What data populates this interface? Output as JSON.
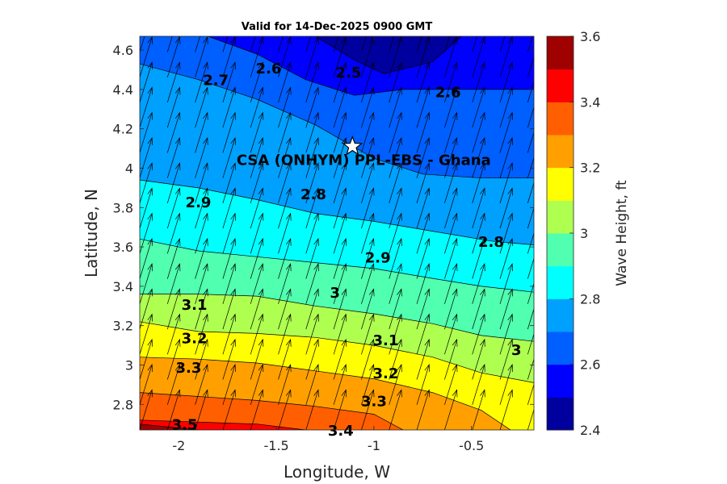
{
  "chart_data": {
    "type": "contour",
    "title": "Valid for 14-Dec-2025 0900 GMT",
    "xlabel": "Longitude, W",
    "ylabel": "Latitude, N",
    "xlim": [
      -2.2,
      -0.18
    ],
    "ylim": [
      2.67,
      4.67
    ],
    "xticks": [
      -2,
      -1.5,
      -1,
      -0.5
    ],
    "xtick_labels": [
      "-2",
      "-1.5",
      "-1",
      "-0.5"
    ],
    "yticks": [
      2.8,
      3.0,
      3.2,
      3.4,
      3.6,
      3.8,
      4.0,
      4.2,
      4.4,
      4.6
    ],
    "ytick_labels": [
      "2.8",
      "3",
      "3.2",
      "3.4",
      "3.6",
      "3.8",
      "4",
      "4.2",
      "4.4",
      "4.6"
    ],
    "colorbar": {
      "label": "Wave Height, ft",
      "range": [
        2.4,
        3.6
      ],
      "ticks": [
        2.4,
        2.6,
        2.8,
        3.0,
        3.2,
        3.4,
        3.6
      ],
      "tick_labels": [
        "2.4",
        "2.6",
        "2.8",
        "3",
        "3.2",
        "3.4",
        "3.6"
      ],
      "colors": [
        "#00009f",
        "#0000ff",
        "#005fff",
        "#00a0ff",
        "#00ffff",
        "#50ffaf",
        "#afff50",
        "#ffff00",
        "#ffa000",
        "#ff5f00",
        "#ff0000",
        "#9f0000"
      ]
    },
    "levels": [
      2.5,
      2.6,
      2.7,
      2.8,
      2.9,
      3.0,
      3.1,
      3.2,
      3.3,
      3.4,
      3.5
    ],
    "contour_lines": [
      {
        "level": 2.5,
        "points": [
          [
            -1.3,
            4.67
          ],
          [
            -1.1,
            4.55
          ],
          [
            -0.95,
            4.48
          ],
          [
            -0.7,
            4.54
          ],
          [
            -0.55,
            4.67
          ]
        ]
      },
      {
        "level": 2.6,
        "points": [
          [
            -1.85,
            4.67
          ],
          [
            -1.6,
            4.58
          ],
          [
            -1.35,
            4.45
          ],
          [
            -1.1,
            4.37
          ],
          [
            -0.85,
            4.4
          ],
          [
            -0.5,
            4.4
          ],
          [
            -0.18,
            4.4
          ]
        ]
      },
      {
        "level": 2.7,
        "points": [
          [
            -2.2,
            4.53
          ],
          [
            -1.9,
            4.45
          ],
          [
            -1.6,
            4.35
          ],
          [
            -1.3,
            4.22
          ],
          [
            -1.0,
            4.05
          ],
          [
            -0.75,
            3.97
          ],
          [
            -0.45,
            3.95
          ],
          [
            -0.18,
            3.95
          ]
        ]
      },
      {
        "level": 2.8,
        "points": [
          [
            -2.2,
            3.94
          ],
          [
            -1.9,
            3.9
          ],
          [
            -1.6,
            3.84
          ],
          [
            -1.3,
            3.77
          ],
          [
            -1.0,
            3.73
          ],
          [
            -0.7,
            3.68
          ],
          [
            -0.4,
            3.63
          ],
          [
            -0.18,
            3.61
          ]
        ]
      },
      {
        "level": 2.9,
        "points": [
          [
            -2.2,
            3.64
          ],
          [
            -1.9,
            3.58
          ],
          [
            -1.6,
            3.55
          ],
          [
            -1.3,
            3.52
          ],
          [
            -1.0,
            3.49
          ],
          [
            -0.7,
            3.44
          ],
          [
            -0.45,
            3.4
          ],
          [
            -0.18,
            3.37
          ]
        ]
      },
      {
        "level": 3.0,
        "points": [
          [
            -2.2,
            3.36
          ],
          [
            -1.9,
            3.36
          ],
          [
            -1.6,
            3.35
          ],
          [
            -1.3,
            3.3
          ],
          [
            -1.0,
            3.26
          ],
          [
            -0.7,
            3.21
          ],
          [
            -0.45,
            3.15
          ],
          [
            -0.18,
            3.12
          ]
        ]
      },
      {
        "level": 3.1,
        "points": [
          [
            -2.2,
            3.22
          ],
          [
            -1.9,
            3.17
          ],
          [
            -1.6,
            3.16
          ],
          [
            -1.3,
            3.14
          ],
          [
            -1.0,
            3.1
          ],
          [
            -0.7,
            3.04
          ],
          [
            -0.45,
            2.96
          ],
          [
            -0.18,
            2.91
          ]
        ]
      },
      {
        "level": 3.2,
        "points": [
          [
            -2.2,
            3.04
          ],
          [
            -1.9,
            3.03
          ],
          [
            -1.6,
            3.01
          ],
          [
            -1.3,
            2.97
          ],
          [
            -1.0,
            2.93
          ],
          [
            -0.7,
            2.86
          ],
          [
            -0.45,
            2.77
          ],
          [
            -0.3,
            2.67
          ]
        ]
      },
      {
        "level": 3.3,
        "points": [
          [
            -2.2,
            2.86
          ],
          [
            -1.9,
            2.84
          ],
          [
            -1.6,
            2.82
          ],
          [
            -1.3,
            2.79
          ],
          [
            -1.0,
            2.75
          ],
          [
            -0.85,
            2.67
          ]
        ]
      },
      {
        "level": 3.4,
        "points": [
          [
            -2.2,
            2.72
          ],
          [
            -1.9,
            2.71
          ],
          [
            -1.6,
            2.7
          ],
          [
            -1.35,
            2.67
          ]
        ]
      },
      {
        "level": 3.5,
        "points": [
          [
            -2.2,
            2.7
          ],
          [
            -2.0,
            2.68
          ],
          [
            -1.9,
            2.67
          ]
        ]
      }
    ],
    "contour_labels": [
      {
        "text": "2.5",
        "x": -1.13,
        "y": 4.49
      },
      {
        "text": "2.6",
        "x": -1.54,
        "y": 4.51
      },
      {
        "text": "2.6",
        "x": -0.62,
        "y": 4.39
      },
      {
        "text": "2.7",
        "x": -1.81,
        "y": 4.45
      },
      {
        "text": "2.8",
        "x": -1.31,
        "y": 3.87
      },
      {
        "text": "2.8",
        "x": -0.4,
        "y": 3.63
      },
      {
        "text": "2.9",
        "x": -1.9,
        "y": 3.83
      },
      {
        "text": "2.9",
        "x": -0.98,
        "y": 3.55
      },
      {
        "text": "3",
        "x": -1.2,
        "y": 3.37
      },
      {
        "text": "3",
        "x": -0.27,
        "y": 3.08
      },
      {
        "text": "3.1",
        "x": -1.92,
        "y": 3.31
      },
      {
        "text": "3.1",
        "x": -0.94,
        "y": 3.13
      },
      {
        "text": "3.2",
        "x": -1.92,
        "y": 3.14
      },
      {
        "text": "3.2",
        "x": -0.94,
        "y": 2.96
      },
      {
        "text": "3.3",
        "x": -1.95,
        "y": 2.99
      },
      {
        "text": "3.3",
        "x": -1.0,
        "y": 2.82
      },
      {
        "text": "3.4",
        "x": -1.17,
        "y": 2.67
      },
      {
        "text": "3.5",
        "x": -1.97,
        "y": 2.7
      }
    ],
    "vectors": {
      "direction_deg_from_north": 17,
      "grid_lon_step": 0.142,
      "grid_lat_step": 0.128
    },
    "site": {
      "label": "CSA (ONHYM) PPL-EBS  - Ghana",
      "lon": -1.11,
      "lat": 4.11
    }
  }
}
